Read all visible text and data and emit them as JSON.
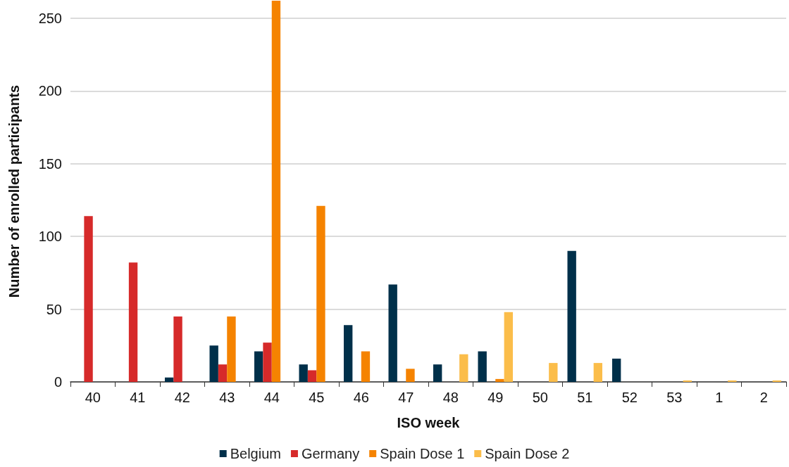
{
  "chart_data": {
    "type": "bar",
    "xlabel": "ISO week",
    "ylabel": "Number of enrolled participants",
    "categories": [
      "40",
      "41",
      "42",
      "43",
      "44",
      "45",
      "46",
      "47",
      "48",
      "49",
      "50",
      "51",
      "52",
      "53",
      "1",
      "2"
    ],
    "series": [
      {
        "name": "Belgium",
        "color": "#00304a",
        "values": [
          null,
          null,
          3,
          25,
          21,
          12,
          39,
          67,
          12,
          21,
          null,
          90,
          16,
          null,
          null,
          null
        ]
      },
      {
        "name": "Germany",
        "color": "#d62a2a",
        "values": [
          114,
          82,
          45,
          12,
          27,
          8,
          null,
          null,
          null,
          null,
          null,
          null,
          null,
          null,
          null,
          null
        ]
      },
      {
        "name": "Spain Dose 1",
        "color": "#f58300",
        "values": [
          null,
          null,
          null,
          45,
          262,
          121,
          21,
          9,
          null,
          2,
          null,
          null,
          null,
          null,
          null,
          null
        ]
      },
      {
        "name": "Spain Dose 2",
        "color": "#fbbd4a",
        "values": [
          null,
          null,
          null,
          null,
          null,
          null,
          null,
          null,
          19,
          48,
          13,
          13,
          null,
          1,
          1,
          1
        ]
      }
    ],
    "ylim": [
      0,
      262
    ],
    "yticks": [
      0,
      50,
      100,
      150,
      200,
      250
    ],
    "grid": "y",
    "legend": "bottom"
  }
}
